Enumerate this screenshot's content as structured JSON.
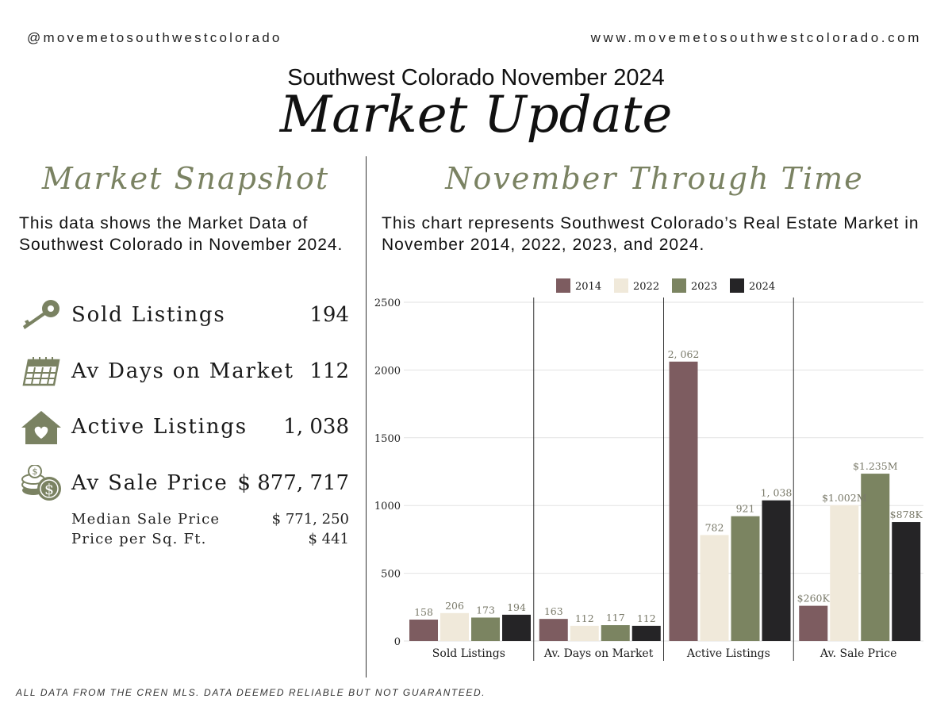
{
  "header": {
    "handle": "@movemetosouthwestcolorado",
    "website": "www.movemetosouthwestcolorado.com",
    "subtitle": "Southwest Colorado November 2024",
    "title": "Market Update"
  },
  "snapshot": {
    "title": "Market Snapshot",
    "description": "This data shows the Market Data of Southwest Colorado in November 2024.",
    "stats": [
      {
        "label": "Sold Listings",
        "value": "194",
        "icon": "key-icon"
      },
      {
        "label": "Av Days on Market",
        "value": "112",
        "icon": "calendar-icon"
      },
      {
        "label": "Active Listings",
        "value": "1, 038",
        "icon": "house-heart-icon"
      },
      {
        "label": "Av Sale Price",
        "value": "$ 877, 717",
        "icon": "coins-dollar-icon"
      }
    ],
    "sub_stats": [
      {
        "label": "Median Sale Price",
        "value": "$ 771, 250"
      },
      {
        "label": "Price per Sq. Ft.",
        "value": "$ 441"
      }
    ]
  },
  "through_time": {
    "title": "November Through Time",
    "description": "This chart represents Southwest Colorado’s Real Estate Market in November  2014, 2022, 2023, and 2024."
  },
  "chart_data": {
    "type": "bar",
    "categories": [
      "Sold Listings",
      "Av. Days on Market",
      "Active Listings",
      "Av. Sale Price"
    ],
    "series": [
      {
        "name": "2014",
        "color": "#7d5c60",
        "values": [
          158,
          163,
          2062,
          260
        ],
        "labels": [
          "158",
          "163",
          "2, 062",
          "$260K"
        ]
      },
      {
        "name": "2022",
        "color": "#f0e9da",
        "values": [
          206,
          112,
          782,
          1002
        ],
        "labels": [
          "206",
          "112",
          "782",
          "$1.002M"
        ]
      },
      {
        "name": "2023",
        "color": "#7b8461",
        "values": [
          173,
          117,
          921,
          1235
        ],
        "labels": [
          "173",
          "117",
          "921",
          "$1.235M"
        ]
      },
      {
        "name": "2024",
        "color": "#252426",
        "values": [
          194,
          112,
          1038,
          878
        ],
        "labels": [
          "194",
          "112",
          "1, 038",
          "$878K"
        ]
      }
    ],
    "yticks": [
      0,
      500,
      1000,
      1500,
      2000,
      2500
    ],
    "ylim": [
      0,
      2500
    ],
    "grid": true,
    "legend": "top-center"
  },
  "footer": {
    "disclaimer": "ALL DATA FROM THE CREN MLS. DATA DEEMED RELIABLE BUT NOT GUARANTEED."
  },
  "colors": {
    "accent_olive": "#7a8262",
    "mauve": "#7d5c60",
    "cream": "#f0e9da",
    "charcoal": "#252426"
  }
}
